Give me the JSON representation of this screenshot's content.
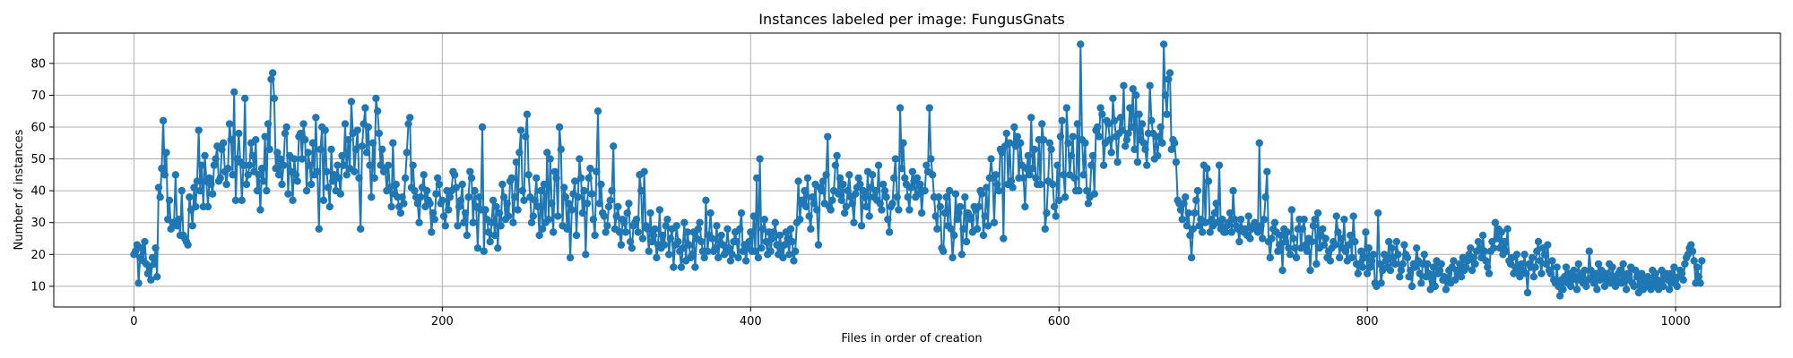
{
  "chart_data": {
    "type": "line",
    "title": "Instances labeled per image: FungusGnats",
    "xlabel": "Files in order of creation",
    "ylabel": "Number of instances",
    "xlim": [
      -52,
      1068
    ],
    "ylim": [
      3.5,
      89.5
    ],
    "xticks": [
      0,
      200,
      400,
      600,
      800,
      1000
    ],
    "yticks": [
      10,
      20,
      30,
      40,
      50,
      60,
      70,
      80
    ],
    "grid": true,
    "marker": "circle",
    "series_color": "#1f77b4",
    "series": [
      {
        "y": [
          20,
          21,
          23,
          11,
          19,
          22,
          18,
          24,
          17,
          14,
          16,
          12,
          19,
          17,
          22,
          13,
          41,
          38,
          47,
          62,
          45,
          52,
          31,
          37,
          28,
          30,
          30,
          45,
          29,
          31,
          26,
          40,
          26,
          25,
          24,
          23,
          38,
          34,
          29,
          41,
          35,
          43,
          59,
          40,
          48,
          35,
          51,
          43,
          35,
          44,
          42,
          39,
          48,
          50,
          54,
          43,
          44,
          53,
          55,
          46,
          42,
          47,
          61,
          56,
          45,
          71,
          37,
          50,
          58,
          49,
          37,
          48,
          69,
          42,
          45,
          48,
          55,
          51,
          46,
          56,
          40,
          45,
          34,
          47,
          43,
          57,
          40,
          61,
          53,
          75,
          77,
          69,
          47,
          52,
          45,
          50,
          42,
          48,
          58,
          60,
          39,
          51,
          46,
          37,
          50,
          45,
          43,
          57,
          58,
          50,
          61,
          56,
          40,
          52,
          48,
          42,
          55,
          45,
          63,
          46,
          28,
          53,
          60,
          37,
          59,
          46,
          41,
          35,
          53,
          43,
          45,
          40,
          48,
          44,
          39,
          51,
          48,
          61,
          45,
          56,
          47,
          68,
          58,
          46,
          53,
          59,
          44,
          28,
          54,
          61,
          66,
          52,
          60,
          48,
          38,
          55,
          44,
          69,
          65,
          58,
          48,
          53,
          46,
          47,
          40,
          48,
          41,
          35,
          55,
          39,
          42,
          38,
          35,
          33,
          38,
          36,
          44,
          52,
          61,
          63,
          41,
          48,
          40,
          38,
          36,
          30,
          38,
          41,
          45,
          35,
          40,
          37,
          36,
          27,
          33,
          31,
          39,
          44,
          42,
          36,
          37,
          32,
          29,
          40,
          34,
          38,
          40,
          46,
          45,
          41,
          29,
          35,
          37,
          42,
          30,
          33,
          26,
          38,
          46,
          44,
          30,
          40,
          35,
          22,
          38,
          34,
          60,
          21,
          34,
          31,
          27,
          24,
          30,
          37,
          26,
          35,
          22,
          33,
          29,
          42,
          38,
          31,
          36,
          32,
          43,
          44,
          30,
          38,
          49,
          34,
          52,
          59,
          40,
          37,
          57,
          64,
          45,
          38,
          30,
          32,
          37,
          44,
          35,
          26,
          40,
          28,
          42,
          30,
          52,
          31,
          50,
          36,
          27,
          46,
          44,
          32,
          60,
          53,
          29,
          41,
          38,
          28,
          36,
          19,
          34,
          39,
          43,
          26,
          38,
          50,
          44,
          33,
          40,
          20,
          36,
          44,
          47,
          39,
          31,
          26,
          46,
          65,
          36,
          42,
          33,
          32,
          27,
          29,
          35,
          37,
          40,
          54,
          28,
          32,
          35,
          27,
          23,
          31,
          30,
          27,
          33,
          36,
          24,
          22,
          29,
          30,
          31,
          27,
          45,
          40,
          25,
          46,
          29,
          28,
          21,
          33,
          24,
          26,
          28,
          19,
          23,
          34,
          22,
          26,
          23,
          29,
          31,
          20,
          25,
          28,
          16,
          23,
          29,
          24,
          21,
          16,
          22,
          30,
          18,
          27,
          23,
          19,
          20,
          27,
          16,
          25,
          28,
          30,
          24,
          21,
          19,
          37,
          21,
          26,
          33,
          25,
          21,
          22,
          29,
          19,
          24,
          26,
          23,
          20,
          21,
          28,
          22,
          18,
          20,
          24,
          27,
          24,
          19,
          28,
          33,
          21,
          23,
          18,
          22,
          24,
          27,
          21,
          32,
          21,
          44,
          19,
          50,
          22,
          28,
          31,
          24,
          20,
          27,
          21,
          25,
          27,
          30,
          23,
          20,
          26,
          22,
          19,
          23,
          27,
          25,
          20,
          28,
          24,
          18,
          21,
          30,
          43,
          31,
          37,
          36,
          40,
          35,
          44,
          32,
          28,
          38,
          36,
          42,
          34,
          23,
          41,
          40,
          43,
          36,
          45,
          57,
          35,
          34,
          37,
          40,
          48,
          51,
          39,
          44,
          37,
          42,
          33,
          35,
          40,
          45,
          38,
          36,
          30,
          39,
          41,
          44,
          42,
          29,
          40,
          38,
          35,
          46,
          32,
          41,
          45,
          38,
          40,
          37,
          48,
          36,
          34,
          42,
          40,
          38,
          31,
          27,
          35,
          36,
          44,
          50,
          38,
          34,
          66,
          47,
          55,
          44,
          42,
          38,
          34,
          41,
          46,
          43,
          38,
          44,
          39,
          42,
          33,
          40,
          40,
          48,
          46,
          66,
          50,
          45,
          38,
          32,
          28,
          38,
          35,
          22,
          21,
          33,
          38,
          29,
          40,
          28,
          19,
          26,
          39,
          31,
          33,
          35,
          20,
          28,
          38,
          24,
          33,
          32,
          31,
          27,
          35,
          34,
          28,
          35,
          40,
          39,
          26,
          32,
          41,
          29,
          44,
          50,
          44,
          30,
          45,
          42,
          40,
          53,
          52,
          25,
          54,
          58,
          42,
          55,
          43,
          41,
          60,
          54,
          57,
          44,
          55,
          48,
          44,
          35,
          47,
          51,
          45,
          63,
          47,
          53,
          44,
          42,
          56,
          42,
          61,
          56,
          28,
          33,
          43,
          55,
          53,
          42,
          35,
          32,
          48,
          37,
          57,
          62,
          45,
          38,
          66,
          55,
          45,
          51,
          57,
          44,
          40,
          61,
          40,
          86,
          56,
          45,
          55,
          40,
          36,
          38,
          48,
          51,
          39,
          59,
          60,
          57,
          66,
          64,
          48,
          55,
          62,
          61,
          56,
          52,
          69,
          62,
          57,
          49,
          58,
          63,
          59,
          73,
          54,
          56,
          58,
          66,
          60,
          72,
          53,
          70,
          49,
          64,
          56,
          61,
          55,
          53,
          48,
          58,
          73,
          62,
          58,
          50,
          57,
          51,
          57,
          60,
          55,
          86,
          70,
          64,
          75,
          77,
          53,
          56,
          55,
          49,
          37,
          36,
          34,
          31,
          36,
          38,
          29,
          33,
          26,
          19,
          28,
          33,
          37,
          40,
          29,
          31,
          27,
          48,
          30,
          47,
          43,
          27,
          31,
          29,
          33,
          36,
          30,
          48,
          28,
          31,
          27,
          27,
          29,
          30,
          33,
          27,
          40,
          31,
          29,
          28,
          24,
          31,
          28,
          27,
          28,
          26,
          32,
          25,
          28,
          29,
          30,
          28,
          27,
          55,
          29,
          25,
          31,
          38,
          46,
          24,
          19,
          25,
          28,
          30,
          27,
          21,
          23,
          26,
          15,
          28,
          24,
          27,
          22,
          20,
          34,
          25,
          22,
          19,
          28,
          31,
          22,
          28,
          31,
          23,
          21,
          25,
          15,
          24,
          29,
          31,
          17,
          33,
          22,
          26,
          28,
          23,
          25,
          19,
          21,
          18,
          22,
          24,
          23,
          32,
          27,
          19,
          25,
          22,
          31,
          21,
          18,
          23,
          26,
          19,
          32,
          24,
          17,
          14,
          17,
          21,
          16,
          19,
          27,
          14,
          22,
          16,
          18,
          20,
          11,
          10,
          33,
          17,
          11,
          15,
          20,
          18,
          16,
          24,
          15,
          22,
          19,
          17,
          24,
          20,
          13,
          15,
          17,
          23,
          20,
          19,
          13,
          15,
          10,
          17,
          16,
          22,
          18,
          14,
          11,
          17,
          20,
          13,
          17,
          14,
          9,
          12,
          16,
          10,
          18,
          14,
          15,
          17,
          12,
          13,
          9,
          12,
          15,
          11,
          16,
          18,
          12,
          15,
          14,
          17,
          13,
          19,
          15,
          16,
          18,
          20,
          22,
          15,
          19,
          17,
          21,
          24,
          22,
          19,
          26,
          21,
          18,
          16,
          14,
          21,
          24,
          22,
          30,
          25,
          28,
          22,
          27,
          20,
          24,
          21,
          28,
          18,
          17,
          19,
          14,
          16,
          20,
          15,
          13,
          17,
          15,
          20,
          14,
          8,
          17,
          16,
          19,
          13,
          16,
          21,
          24,
          18,
          14,
          22,
          20,
          17,
          23,
          15,
          14,
          18,
          12,
          11,
          16,
          10,
          7,
          12,
          9,
          13,
          16,
          11,
          14,
          10,
          12,
          15,
          13,
          9,
          17,
          12,
          14,
          11,
          15,
          10,
          12,
          21,
          15,
          13,
          11,
          14,
          9,
          17,
          12,
          15,
          13,
          10,
          14,
          12,
          17,
          11,
          16,
          13,
          10,
          12,
          14,
          15,
          11,
          17,
          13,
          9,
          14,
          12,
          16,
          11,
          10,
          15,
          13,
          8,
          11,
          14,
          9,
          12,
          10,
          13,
          11,
          9,
          15,
          10,
          14,
          12,
          9,
          11,
          15,
          10,
          13,
          14,
          12,
          9,
          14,
          11,
          16,
          12,
          10,
          13,
          15,
          14,
          12,
          17,
          19,
          20,
          22,
          23,
          21,
          18,
          11,
          16,
          13,
          11,
          18
        ]
      }
    ]
  }
}
